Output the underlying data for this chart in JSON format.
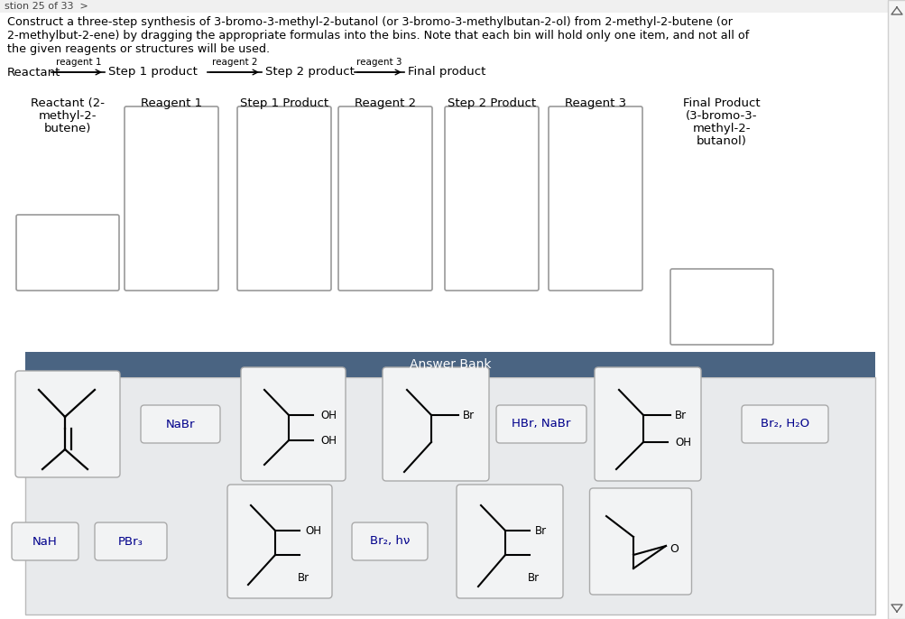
{
  "bg_color": "#ffffff",
  "header_bg": "#4a6482",
  "answer_bank_bg": "#e8eaec",
  "card_bg": "#f2f3f4",
  "card_ec": "#aaaaaa",
  "reagent_color": "#00008B",
  "title1": "Construct a three-step synthesis of 3-bromo-3-methyl-2-butanol (or 3-bromo-3-methylbutan-2-ol) from 2-methyl-2-butene (or",
  "title2": "2-methylbut-2-ene) by dragging the appropriate formulas into the bins. Note that each bin will hold only one item, and not all of",
  "title3": "the given reagents or structures will be used.",
  "scheme_label": "reagent 1",
  "col_labels": [
    "Reactant (2-",
    "Reagent 1",
    "Step 1 Product",
    "Reagent 2",
    "Step 2 Product",
    "Reagent 3",
    "Final Product"
  ],
  "col_labels2": [
    "methyl-2-",
    "",
    "",
    "",
    "",
    "",
    "(3-bromo-3-"
  ],
  "col_labels3": [
    "butene)",
    "",
    "",
    "",
    "",
    "",
    "methyl-2-"
  ],
  "col_labels4": [
    "",
    "",
    "",
    "",
    "",
    "",
    "butanol)"
  ]
}
